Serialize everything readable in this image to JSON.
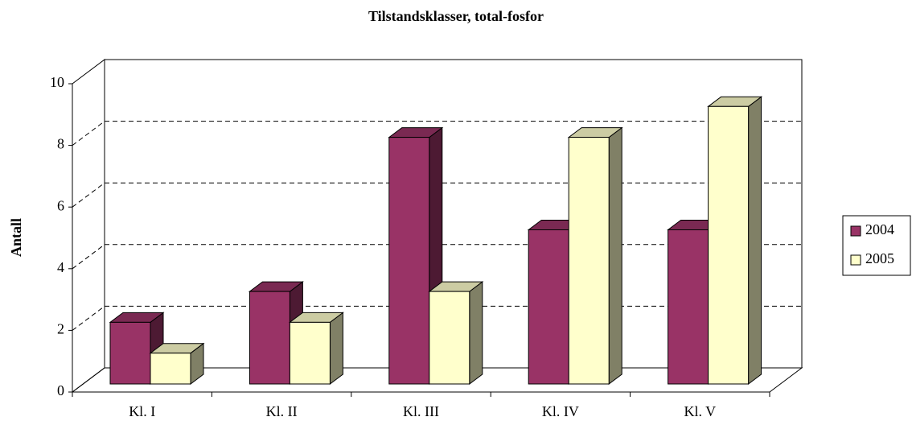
{
  "chart_data": {
    "type": "bar3d",
    "title": "Tilstandsklasser, total-fosfor",
    "ylabel": "Antall",
    "categories": [
      "Kl. I",
      "Kl. II",
      "Kl. III",
      "Kl. IV",
      "Kl. V"
    ],
    "series": [
      {
        "name": "2004",
        "color": "#993366",
        "values": [
          2,
          3,
          8,
          5,
          5
        ]
      },
      {
        "name": "2005",
        "color": "#ffffcc",
        "values": [
          1,
          2,
          3,
          8,
          9
        ]
      }
    ],
    "ylim": [
      0,
      10
    ],
    "yticks": [
      0,
      2,
      4,
      6,
      8,
      10
    ],
    "grid": true,
    "legend": "right"
  }
}
